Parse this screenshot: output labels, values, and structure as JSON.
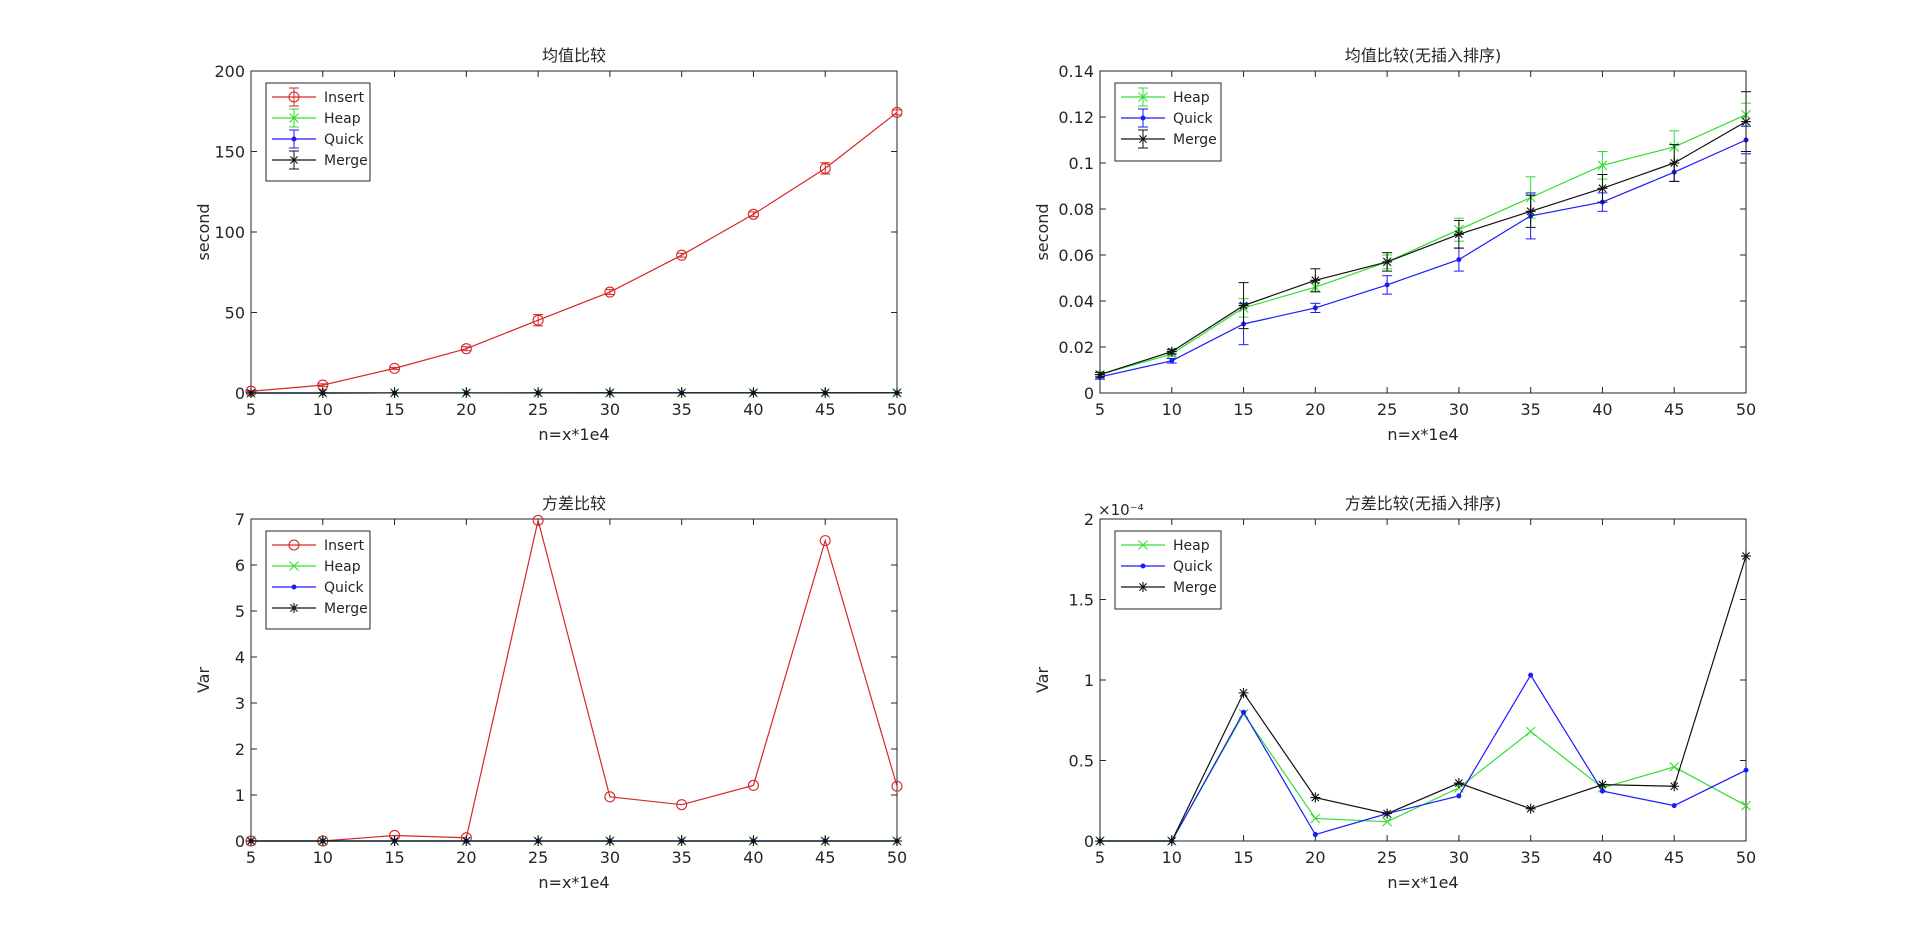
{
  "chart_data": [
    {
      "type": "line",
      "error_bars": true,
      "title": "均值比较",
      "xlabel": "n=x*1e4",
      "ylabel": "second",
      "x": [
        5,
        10,
        15,
        20,
        25,
        30,
        35,
        40,
        45,
        50
      ],
      "xlim": [
        5,
        50
      ],
      "ylim": [
        0,
        200
      ],
      "yticks": [
        0,
        50,
        100,
        150,
        200
      ],
      "ytick_labels": [
        "0",
        "50",
        "100",
        "150",
        "200"
      ],
      "exponent": "",
      "grid": false,
      "legend_position": "top-left",
      "series": [
        {
          "name": "Insert",
          "color": "#d62728",
          "marker": "circle",
          "values": [
            1.1,
            4.9,
            15.3,
            27.5,
            45.2,
            62.7,
            85.6,
            111.0,
            139.5,
            174.3
          ],
          "error": [
            0.3,
            0.8,
            0.6,
            1.2,
            3.5,
            1.5,
            1.2,
            1.5,
            3.5,
            1.5
          ]
        },
        {
          "name": "Heap",
          "color": "#33dd33",
          "marker": "x",
          "values": [
            0.008,
            0.017,
            0.037,
            0.046,
            0.057,
            0.071,
            0.085,
            0.099,
            0.107,
            0.121
          ],
          "error": [
            0,
            0,
            0,
            0,
            0,
            0,
            0,
            0,
            0,
            0
          ]
        },
        {
          "name": "Quick",
          "color": "#1a1aff",
          "marker": "dot",
          "values": [
            0.007,
            0.014,
            0.03,
            0.037,
            0.047,
            0.058,
            0.077,
            0.083,
            0.096,
            0.11
          ],
          "error": [
            0,
            0,
            0,
            0,
            0,
            0,
            0,
            0,
            0,
            0
          ]
        },
        {
          "name": "Merge",
          "color": "#111111",
          "marker": "asterisk",
          "values": [
            0.008,
            0.018,
            0.038,
            0.049,
            0.057,
            0.069,
            0.079,
            0.089,
            0.1,
            0.118
          ],
          "error": [
            0,
            0,
            0,
            0,
            0,
            0,
            0,
            0,
            0,
            0
          ]
        }
      ]
    },
    {
      "type": "line",
      "error_bars": true,
      "title": "均值比较(无插入排序)",
      "xlabel": "n=x*1e4",
      "ylabel": "second",
      "x": [
        5,
        10,
        15,
        20,
        25,
        30,
        35,
        40,
        45,
        50
      ],
      "xlim": [
        5,
        50
      ],
      "ylim": [
        0,
        0.14
      ],
      "yticks": [
        0,
        0.02,
        0.04,
        0.06,
        0.08,
        0.1,
        0.12,
        0.14
      ],
      "ytick_labels": [
        "0",
        "0.02",
        "0.04",
        "0.06",
        "0.08",
        "0.1",
        "0.12",
        "0.14"
      ],
      "exponent": "",
      "grid": false,
      "legend_position": "top-left",
      "series": [
        {
          "name": "Heap",
          "color": "#33dd33",
          "marker": "x",
          "values": [
            0.008,
            0.017,
            0.037,
            0.046,
            0.057,
            0.071,
            0.085,
            0.099,
            0.107,
            0.121
          ],
          "error": [
            0.001,
            0.001,
            0.004,
            0.002,
            0.003,
            0.005,
            0.009,
            0.006,
            0.007,
            0.005
          ]
        },
        {
          "name": "Quick",
          "color": "#1a1aff",
          "marker": "dot",
          "values": [
            0.007,
            0.014,
            0.03,
            0.037,
            0.047,
            0.058,
            0.077,
            0.083,
            0.096,
            0.11
          ],
          "error": [
            0.001,
            0.001,
            0.009,
            0.002,
            0.004,
            0.005,
            0.01,
            0.004,
            0.004,
            0.006
          ]
        },
        {
          "name": "Merge",
          "color": "#111111",
          "marker": "asterisk",
          "values": [
            0.008,
            0.018,
            0.038,
            0.049,
            0.057,
            0.069,
            0.079,
            0.089,
            0.1,
            0.118
          ],
          "error": [
            0.001,
            0.001,
            0.01,
            0.005,
            0.004,
            0.006,
            0.007,
            0.006,
            0.008,
            0.013
          ]
        }
      ]
    },
    {
      "type": "line",
      "error_bars": false,
      "title": "方差比较",
      "xlabel": "n=x*1e4",
      "ylabel": "Var",
      "x": [
        5,
        10,
        15,
        20,
        25,
        30,
        35,
        40,
        45,
        50
      ],
      "xlim": [
        5,
        50
      ],
      "ylim": [
        0,
        7
      ],
      "yticks": [
        0,
        1,
        2,
        3,
        4,
        5,
        6,
        7
      ],
      "ytick_labels": [
        "0",
        "1",
        "2",
        "3",
        "4",
        "5",
        "6",
        "7"
      ],
      "exponent": "",
      "grid": false,
      "legend_position": "top-left",
      "series": [
        {
          "name": "Insert",
          "color": "#d62728",
          "marker": "circle",
          "values": [
            0.0,
            0.0,
            0.12,
            0.07,
            6.97,
            0.96,
            0.79,
            1.21,
            6.53,
            1.19
          ]
        },
        {
          "name": "Heap",
          "color": "#33dd33",
          "marker": "x",
          "values": [
            0,
            0,
            0,
            0,
            0,
            0,
            0,
            0,
            0,
            0
          ]
        },
        {
          "name": "Quick",
          "color": "#1a1aff",
          "marker": "dot",
          "values": [
            0,
            0,
            0,
            0,
            0,
            0,
            0,
            0,
            0,
            0
          ]
        },
        {
          "name": "Merge",
          "color": "#111111",
          "marker": "asterisk",
          "values": [
            0,
            0,
            0,
            0,
            0,
            0,
            0,
            0,
            0,
            0
          ]
        }
      ]
    },
    {
      "type": "line",
      "error_bars": false,
      "title": "方差比较(无插入排序)",
      "xlabel": "n=x*1e4",
      "ylabel": "Var",
      "x": [
        5,
        10,
        15,
        20,
        25,
        30,
        35,
        40,
        45,
        50
      ],
      "xlim": [
        5,
        50
      ],
      "ylim": [
        0,
        2
      ],
      "yticks": [
        0,
        0.5,
        1,
        1.5,
        2
      ],
      "ytick_labels": [
        "0",
        "0.5",
        "1",
        "1.5",
        "2"
      ],
      "exponent": "×10⁻⁴",
      "grid": false,
      "legend_position": "top-left",
      "series": [
        {
          "name": "Heap",
          "color": "#33dd33",
          "marker": "x",
          "values": [
            0,
            0,
            0.79,
            0.14,
            0.12,
            0.33,
            0.68,
            0.33,
            0.46,
            0.22
          ]
        },
        {
          "name": "Quick",
          "color": "#1a1aff",
          "marker": "dot",
          "values": [
            0,
            0,
            0.8,
            0.04,
            0.17,
            0.28,
            1.03,
            0.31,
            0.22,
            0.44
          ]
        },
        {
          "name": "Merge",
          "color": "#111111",
          "marker": "asterisk",
          "values": [
            0,
            0,
            0.92,
            0.27,
            0.17,
            0.36,
            0.2,
            0.35,
            0.34,
            1.77
          ]
        }
      ]
    }
  ]
}
